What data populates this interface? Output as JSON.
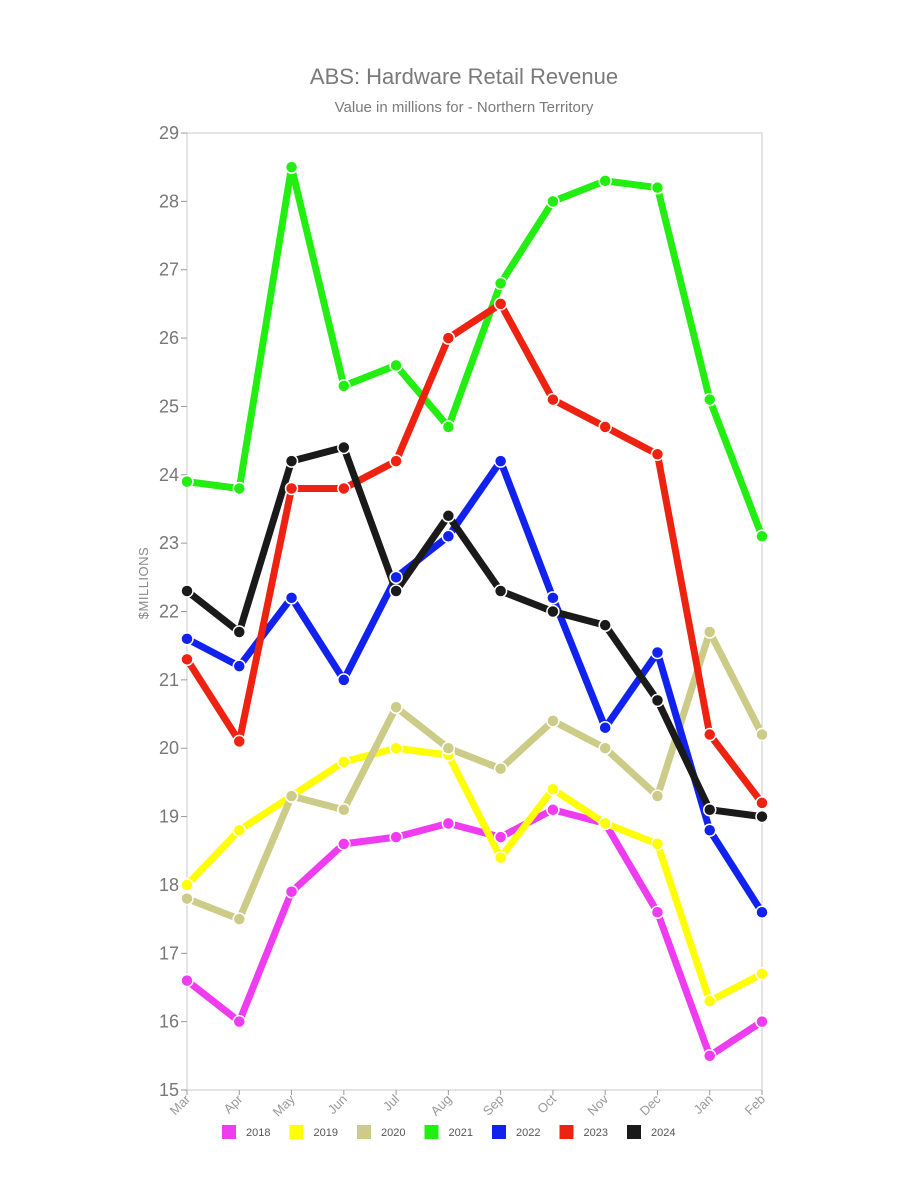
{
  "chart_data": {
    "type": "line",
    "title": "ABS: Hardware Retail Revenue",
    "subtitle": "Value in millions for - Northern Territory",
    "xlabel": "",
    "ylabel": "$MILLIONS",
    "categories": [
      "Mar",
      "Apr",
      "May",
      "Jun",
      "Jul",
      "Aug",
      "Sep",
      "Oct",
      "Nov",
      "Dec",
      "Jan",
      "Feb"
    ],
    "ylim": [
      15,
      29
    ],
    "yticks": [
      15,
      16,
      17,
      18,
      19,
      20,
      21,
      22,
      23,
      24,
      25,
      26,
      27,
      28,
      29
    ],
    "grid": false,
    "legend_position": "bottom",
    "series": [
      {
        "name": "2018",
        "color": "#f03cf0",
        "values": [
          16.6,
          16.0,
          17.9,
          18.6,
          18.7,
          18.9,
          18.7,
          19.1,
          18.9,
          17.6,
          15.5,
          16.0
        ]
      },
      {
        "name": "2019",
        "color": "#ffff00",
        "values": [
          18.0,
          18.8,
          19.3,
          19.8,
          20.0,
          19.9,
          18.4,
          19.4,
          18.9,
          18.6,
          16.3,
          16.7
        ]
      },
      {
        "name": "2020",
        "color": "#cccc88",
        "values": [
          17.8,
          17.5,
          19.3,
          19.1,
          20.6,
          20.0,
          19.7,
          20.4,
          20.0,
          19.3,
          21.7,
          20.2
        ]
      },
      {
        "name": "2021",
        "color": "#22ee11",
        "values": [
          23.9,
          23.8,
          28.5,
          25.3,
          25.6,
          24.7,
          26.8,
          28.0,
          28.3,
          28.2,
          25.1,
          23.1
        ]
      },
      {
        "name": "2022",
        "color": "#1122ee",
        "values": [
          21.6,
          21.2,
          22.2,
          21.0,
          22.5,
          23.1,
          24.2,
          22.2,
          20.3,
          21.4,
          18.8,
          17.6
        ]
      },
      {
        "name": "2023",
        "color": "#ee2211",
        "values": [
          21.3,
          20.1,
          23.8,
          23.8,
          24.2,
          26.0,
          26.5,
          25.1,
          24.7,
          24.3,
          20.2,
          19.2
        ]
      },
      {
        "name": "2024",
        "color": "#1a1a1a",
        "values": [
          22.3,
          21.7,
          24.2,
          24.4,
          22.3,
          23.4,
          22.3,
          22.0,
          21.8,
          20.7,
          19.1,
          19.0
        ]
      }
    ]
  }
}
